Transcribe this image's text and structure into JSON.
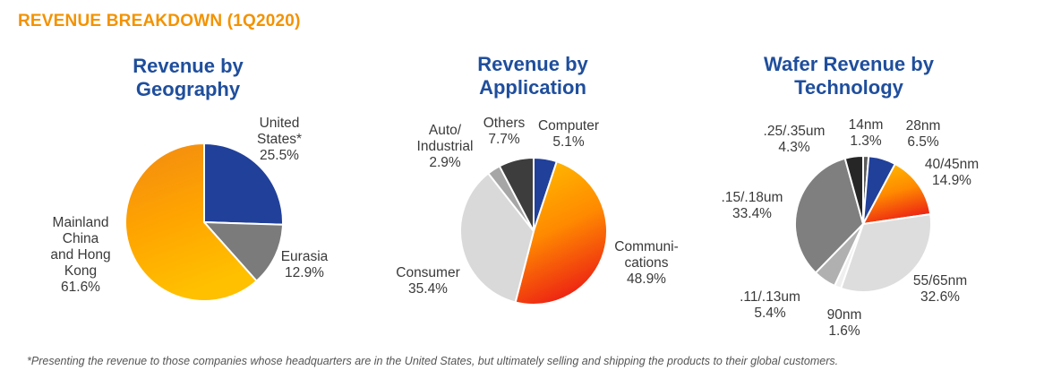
{
  "page_title": "REVENUE BREAKDOWN (1Q2020)",
  "footnote": "*Presenting the revenue to those companies whose headquarters are in the United States, but ultimately selling and shipping the products to their global customers.",
  "colors": {
    "title_orange": "#f39200",
    "chart_title_blue": "#1f4e9c"
  },
  "chart_data": [
    {
      "type": "pie",
      "title": "Revenue by\nGeography",
      "slices": [
        {
          "label": "United\nStates*",
          "value": 25.5,
          "value_label": "25.5%",
          "color": "#21409a"
        },
        {
          "label": "Eurasia",
          "value": 12.9,
          "value_label": "12.9%",
          "color": "#7b7b7b"
        },
        {
          "label": "Mainland\nChina\nand Hong\nKong",
          "value": 61.6,
          "value_label": "61.6%",
          "color": "gradient-orange"
        }
      ]
    },
    {
      "type": "pie",
      "title": "Revenue by\nApplication",
      "slices": [
        {
          "label": "Computer",
          "value": 5.1,
          "value_label": "5.1%",
          "color": "#21409a"
        },
        {
          "label": "Communi-\ncations",
          "value": 48.9,
          "value_label": "48.9%",
          "color": "gradient-orange-red"
        },
        {
          "label": "Consumer",
          "value": 35.4,
          "value_label": "35.4%",
          "color": "#d9d9d9"
        },
        {
          "label": "Auto/\nIndustrial",
          "value": 2.9,
          "value_label": "2.9%",
          "color": "#a6a6a6"
        },
        {
          "label": "Others",
          "value": 7.7,
          "value_label": "7.7%",
          "color": "#3d3d3d"
        }
      ]
    },
    {
      "type": "pie",
      "title": "Wafer Revenue by\nTechnology",
      "slices": [
        {
          "label": "14nm",
          "value": 1.3,
          "value_label": "1.3%",
          "color": "#5b5b5b"
        },
        {
          "label": "28nm",
          "value": 6.5,
          "value_label": "6.5%",
          "color": "#21409a"
        },
        {
          "label": "40/45nm",
          "value": 14.9,
          "value_label": "14.9%",
          "color": "gradient-orange-red"
        },
        {
          "label": "55/65nm",
          "value": 32.6,
          "value_label": "32.6%",
          "color": "#dddddd"
        },
        {
          "label": "90nm",
          "value": 1.6,
          "value_label": "1.6%",
          "color": "#efefef"
        },
        {
          "label": ".11/.13um",
          "value": 5.4,
          "value_label": "5.4%",
          "color": "#b0b0b0"
        },
        {
          "label": ".15/.18um",
          "value": 33.4,
          "value_label": "33.4%",
          "color": "#7f7f7f"
        },
        {
          "label": ".25/.35um",
          "value": 4.3,
          "value_label": "4.3%",
          "color": "#262626"
        }
      ]
    }
  ]
}
